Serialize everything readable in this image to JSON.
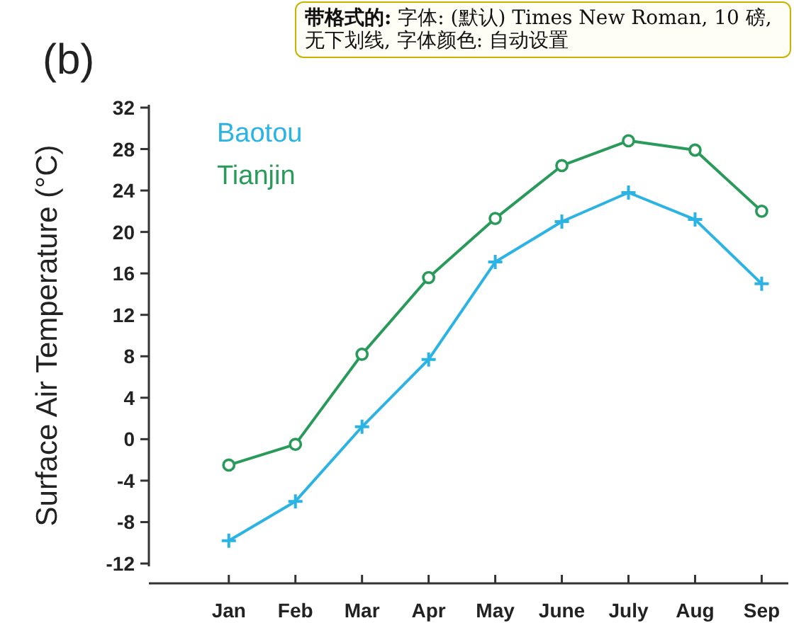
{
  "chart_data": {
    "type": "line",
    "title": "(b)",
    "ylabel": "Surface Air Temperature (°C)",
    "categories": [
      "Jan",
      "Feb",
      "Mar",
      "Apr",
      "May",
      "June",
      "July",
      "Aug",
      "Sep"
    ],
    "series": [
      {
        "name": "Baotou",
        "color": "#2bb3e3",
        "marker": "cross",
        "values": [
          -9.8,
          -6.0,
          1.2,
          7.7,
          17.1,
          21.0,
          23.8,
          21.2,
          15.0
        ]
      },
      {
        "name": "Tianjin",
        "color": "#2a9a5a",
        "marker": "circle",
        "values": [
          -2.5,
          -0.5,
          8.2,
          15.6,
          21.3,
          26.4,
          28.8,
          27.9,
          22.0
        ]
      }
    ],
    "ylim": [
      -12,
      32
    ],
    "yticks": [
      -12,
      -8,
      -4,
      0,
      4,
      8,
      12,
      16,
      20,
      24,
      28,
      32
    ],
    "grid": false,
    "legend": "top left",
    "line_style": "solid",
    "annotations": [
      "带格式的: 字体: (默认) Times New Roman, 10 磅, 无下划线, 字体颜色: 自动设置"
    ]
  }
}
